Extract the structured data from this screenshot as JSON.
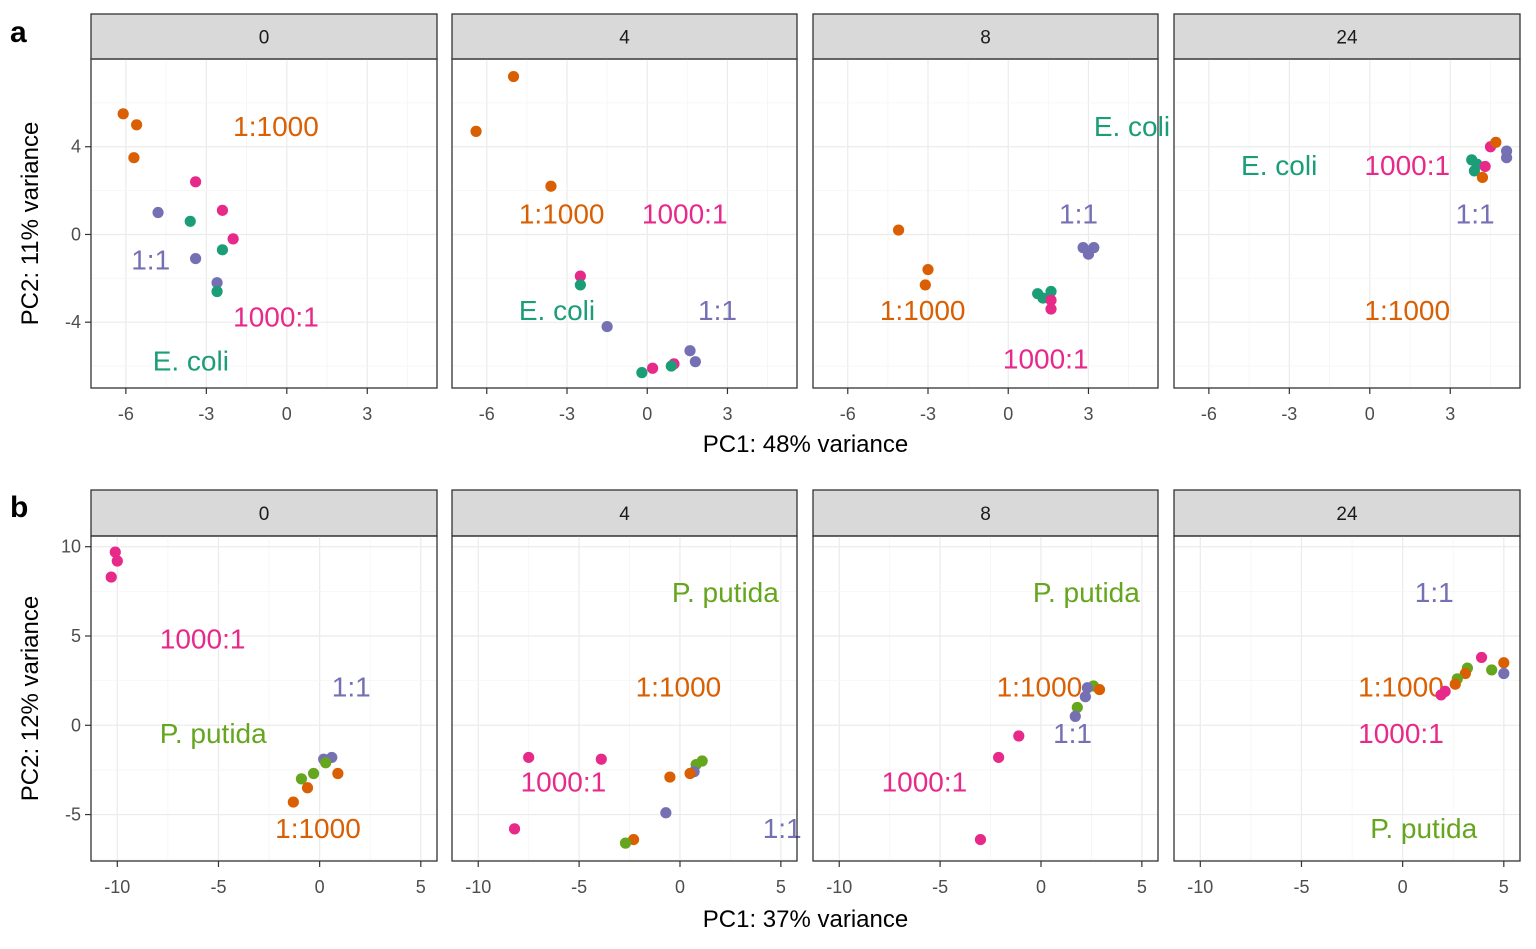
{
  "chart_data": [
    {
      "tag": "a",
      "type": "scatter",
      "xlabel": "PC1: 48% variance",
      "ylabel": "PC2: 11% variance",
      "xlim": [
        -7.3,
        5.6
      ],
      "ylim": [
        -7.0,
        8.0
      ],
      "xticks": [
        -6,
        -3,
        0,
        3
      ],
      "yticks": [
        -4,
        0,
        4
      ],
      "grid": true,
      "colors": {
        "1:1000": "#d95f02",
        "1:1": "#7570b3",
        "E. coli": "#1b9e77",
        "1000:1": "#e7298a"
      },
      "facets": [
        {
          "strip": "0",
          "labels": [
            {
              "text": "1:1000",
              "group": "1:1000",
              "x": -2.0,
              "y": 4.5
            },
            {
              "text": "1:1",
              "group": "1:1",
              "x": -5.8,
              "y": -1.6
            },
            {
              "text": "1000:1",
              "group": "1000:1",
              "x": -2.0,
              "y": -4.2
            },
            {
              "text": "E. coli",
              "group": "E. coli",
              "x": -5.0,
              "y": -6.2
            }
          ],
          "points": [
            {
              "group": "1:1000",
              "x": -6.1,
              "y": 5.5
            },
            {
              "group": "1:1000",
              "x": -5.6,
              "y": 5.0
            },
            {
              "group": "1:1000",
              "x": -5.7,
              "y": 3.5
            },
            {
              "group": "1000:1",
              "x": -3.4,
              "y": 2.4
            },
            {
              "group": "1:1",
              "x": -4.8,
              "y": 1.0
            },
            {
              "group": "E. coli",
              "x": -3.6,
              "y": 0.6
            },
            {
              "group": "1000:1",
              "x": -2.4,
              "y": 1.1
            },
            {
              "group": "1000:1",
              "x": -2.0,
              "y": -0.2
            },
            {
              "group": "E. coli",
              "x": -2.4,
              "y": -0.7
            },
            {
              "group": "1:1",
              "x": -3.4,
              "y": -1.1
            },
            {
              "group": "1:1",
              "x": -2.6,
              "y": -2.2
            },
            {
              "group": "E. coli",
              "x": -2.6,
              "y": -2.6
            }
          ]
        },
        {
          "strip": "4",
          "labels": [
            {
              "text": "1:1000",
              "group": "1:1000",
              "x": -4.8,
              "y": 0.5
            },
            {
              "text": "1000:1",
              "group": "1000:1",
              "x": -0.2,
              "y": 0.5
            },
            {
              "text": "E. coli",
              "group": "E. coli",
              "x": -4.8,
              "y": -3.9
            },
            {
              "text": "1:1",
              "group": "1:1",
              "x": 1.9,
              "y": -3.9
            }
          ],
          "points": [
            {
              "group": "1:1000",
              "x": -5.0,
              "y": 7.2
            },
            {
              "group": "1:1000",
              "x": -6.4,
              "y": 4.7
            },
            {
              "group": "1:1000",
              "x": -3.6,
              "y": 2.2
            },
            {
              "group": "1000:1",
              "x": -2.5,
              "y": -1.9
            },
            {
              "group": "E. coli",
              "x": -2.5,
              "y": -2.3
            },
            {
              "group": "1:1",
              "x": -1.5,
              "y": -4.2
            },
            {
              "group": "1:1",
              "x": 1.6,
              "y": -5.3
            },
            {
              "group": "1:1",
              "x": 1.8,
              "y": -5.8
            },
            {
              "group": "1000:1",
              "x": 1.0,
              "y": -5.9
            },
            {
              "group": "E. coli",
              "x": 0.9,
              "y": -6.0
            },
            {
              "group": "1000:1",
              "x": 0.2,
              "y": -6.1
            },
            {
              "group": "E. coli",
              "x": -0.2,
              "y": -6.3
            }
          ]
        },
        {
          "strip": "8",
          "labels": [
            {
              "text": "E. coli",
              "group": "E. coli",
              "x": 3.2,
              "y": 4.5
            },
            {
              "text": "1:1",
              "group": "1:1",
              "x": 1.9,
              "y": 0.5
            },
            {
              "text": "1:1000",
              "group": "1:1000",
              "x": -4.8,
              "y": -3.9
            },
            {
              "text": "1000:1",
              "group": "1000:1",
              "x": -0.2,
              "y": -6.1
            }
          ],
          "points": [
            {
              "group": "1:1000",
              "x": -4.1,
              "y": 0.2
            },
            {
              "group": "1:1000",
              "x": -3.0,
              "y": -1.6
            },
            {
              "group": "1:1000",
              "x": -3.1,
              "y": -2.3
            },
            {
              "group": "1:1",
              "x": 2.8,
              "y": -0.6
            },
            {
              "group": "1:1",
              "x": 3.0,
              "y": -0.9
            },
            {
              "group": "1:1",
              "x": 3.2,
              "y": -0.6
            },
            {
              "group": "E. coli",
              "x": 1.1,
              "y": -2.7
            },
            {
              "group": "E. coli",
              "x": 1.3,
              "y": -2.9
            },
            {
              "group": "E. coli",
              "x": 1.6,
              "y": -2.6
            },
            {
              "group": "1000:1",
              "x": 1.6,
              "y": -3.0
            },
            {
              "group": "1000:1",
              "x": 1.6,
              "y": -3.4
            }
          ]
        },
        {
          "strip": "24",
          "labels": [
            {
              "text": "E. coli",
              "group": "E. coli",
              "x": -4.8,
              "y": 2.7
            },
            {
              "text": "1000:1",
              "group": "1000:1",
              "x": -0.2,
              "y": 2.7
            },
            {
              "text": "1:1",
              "group": "1:1",
              "x": 3.2,
              "y": 0.5
            },
            {
              "text": "1:1000",
              "group": "1:1000",
              "x": -0.2,
              "y": -3.9
            }
          ],
          "points": [
            {
              "group": "E. coli",
              "x": 3.8,
              "y": 3.4
            },
            {
              "group": "E. coli",
              "x": 4.0,
              "y": 3.2
            },
            {
              "group": "E. coli",
              "x": 3.9,
              "y": 2.9
            },
            {
              "group": "1:1000",
              "x": 4.2,
              "y": 2.6
            },
            {
              "group": "1000:1",
              "x": 4.3,
              "y": 3.1
            },
            {
              "group": "1000:1",
              "x": 4.5,
              "y": 4.0
            },
            {
              "group": "1:1000",
              "x": 4.7,
              "y": 4.2
            },
            {
              "group": "1:1",
              "x": 5.1,
              "y": 3.8
            },
            {
              "group": "1:1",
              "x": 5.1,
              "y": 3.5
            }
          ]
        }
      ]
    },
    {
      "tag": "b",
      "type": "scatter",
      "xlabel": "PC1: 37% variance",
      "ylabel": "PC2: 12% variance",
      "xlim": [
        -11.3,
        5.8
      ],
      "ylim": [
        -7.6,
        10.6
      ],
      "xticks": [
        -10,
        -5,
        0,
        5
      ],
      "yticks": [
        -5,
        0,
        5,
        10
      ],
      "grid": true,
      "colors": {
        "1:1000": "#d95f02",
        "1:1": "#7570b3",
        "P. putida": "#66a61e",
        "1000:1": "#e7298a"
      },
      "facets": [
        {
          "strip": "0",
          "labels": [
            {
              "text": "1000:1",
              "group": "1000:1",
              "x": -7.9,
              "y": 4.3
            },
            {
              "text": "1:1",
              "group": "1:1",
              "x": 0.6,
              "y": 1.6
            },
            {
              "text": "P. putida",
              "group": "P. putida",
              "x": -7.9,
              "y": -1.0
            },
            {
              "text": "1:1000",
              "group": "1:1000",
              "x": -2.2,
              "y": -6.3
            }
          ],
          "points": [
            {
              "group": "1000:1",
              "x": -10.1,
              "y": 9.7
            },
            {
              "group": "1000:1",
              "x": -10.0,
              "y": 9.2
            },
            {
              "group": "1000:1",
              "x": -10.3,
              "y": 8.3
            },
            {
              "group": "1:1",
              "x": 0.2,
              "y": -1.9
            },
            {
              "group": "1:1",
              "x": 0.6,
              "y": -1.8
            },
            {
              "group": "P. putida",
              "x": 0.3,
              "y": -2.1
            },
            {
              "group": "P. putida",
              "x": -0.3,
              "y": -2.7
            },
            {
              "group": "1:1000",
              "x": 0.9,
              "y": -2.7
            },
            {
              "group": "P. putida",
              "x": -0.9,
              "y": -3.0
            },
            {
              "group": "1:1000",
              "x": -0.6,
              "y": -3.5
            },
            {
              "group": "1:1000",
              "x": -1.3,
              "y": -4.3
            }
          ]
        },
        {
          "strip": "4",
          "labels": [
            {
              "text": "P. putida",
              "group": "P. putida",
              "x": -0.4,
              "y": 6.9
            },
            {
              "text": "1:1000",
              "group": "1:1000",
              "x": -2.2,
              "y": 1.6
            },
            {
              "text": "1000:1",
              "group": "1000:1",
              "x": -7.9,
              "y": -3.7
            },
            {
              "text": "1:1",
              "group": "1:1",
              "x": 4.1,
              "y": -6.3
            }
          ],
          "points": [
            {
              "group": "1000:1",
              "x": -7.5,
              "y": -1.8
            },
            {
              "group": "1000:1",
              "x": -3.9,
              "y": -1.9
            },
            {
              "group": "1000:1",
              "x": -8.2,
              "y": -5.8
            },
            {
              "group": "P. putida",
              "x": 1.1,
              "y": -2.0
            },
            {
              "group": "P. putida",
              "x": 0.8,
              "y": -2.2
            },
            {
              "group": "1:1",
              "x": 0.7,
              "y": -2.6
            },
            {
              "group": "1:1000",
              "x": 0.5,
              "y": -2.7
            },
            {
              "group": "1:1000",
              "x": -0.5,
              "y": -2.9
            },
            {
              "group": "1:1",
              "x": -0.7,
              "y": -4.9
            },
            {
              "group": "1:1000",
              "x": -2.3,
              "y": -6.4
            },
            {
              "group": "P. putida",
              "x": -2.7,
              "y": -6.6
            }
          ]
        },
        {
          "strip": "8",
          "labels": [
            {
              "text": "P. putida",
              "group": "P. putida",
              "x": -0.4,
              "y": 6.9
            },
            {
              "text": "1:1000",
              "group": "1:1000",
              "x": -2.2,
              "y": 1.6
            },
            {
              "text": "1:1",
              "group": "1:1",
              "x": 0.6,
              "y": -1.0
            },
            {
              "text": "1000:1",
              "group": "1000:1",
              "x": -7.9,
              "y": -3.7
            }
          ],
          "points": [
            {
              "group": "P. putida",
              "x": 2.6,
              "y": 2.2
            },
            {
              "group": "1:1000",
              "x": 2.9,
              "y": 2.0
            },
            {
              "group": "1:1",
              "x": 2.3,
              "y": 2.1
            },
            {
              "group": "1:1",
              "x": 2.2,
              "y": 1.6
            },
            {
              "group": "P. putida",
              "x": 1.8,
              "y": 1.0
            },
            {
              "group": "1:1",
              "x": 1.7,
              "y": 0.5
            },
            {
              "group": "1000:1",
              "x": -1.1,
              "y": -0.6
            },
            {
              "group": "1000:1",
              "x": -2.1,
              "y": -1.8
            },
            {
              "group": "1000:1",
              "x": -3.0,
              "y": -6.4
            }
          ]
        },
        {
          "strip": "24",
          "labels": [
            {
              "text": "1:1",
              "group": "1:1",
              "x": 0.6,
              "y": 6.9
            },
            {
              "text": "1:1000",
              "group": "1:1000",
              "x": -2.2,
              "y": 1.6
            },
            {
              "text": "1000:1",
              "group": "1000:1",
              "x": -2.2,
              "y": -1.0
            },
            {
              "text": "P. putida",
              "group": "P. putida",
              "x": -1.6,
              "y": -6.3
            }
          ],
          "points": [
            {
              "group": "1000:1",
              "x": 3.9,
              "y": 3.8
            },
            {
              "group": "1:1000",
              "x": 5.0,
              "y": 3.5
            },
            {
              "group": "P. putida",
              "x": 4.4,
              "y": 3.1
            },
            {
              "group": "1:1",
              "x": 5.0,
              "y": 2.9
            },
            {
              "group": "P. putida",
              "x": 3.2,
              "y": 3.2
            },
            {
              "group": "1:1000",
              "x": 3.1,
              "y": 2.9
            },
            {
              "group": "P. putida",
              "x": 2.7,
              "y": 2.6
            },
            {
              "group": "1:1000",
              "x": 2.6,
              "y": 2.3
            },
            {
              "group": "1000:1",
              "x": 2.1,
              "y": 1.9
            },
            {
              "group": "1000:1",
              "x": 1.9,
              "y": 1.7
            }
          ]
        }
      ]
    }
  ]
}
